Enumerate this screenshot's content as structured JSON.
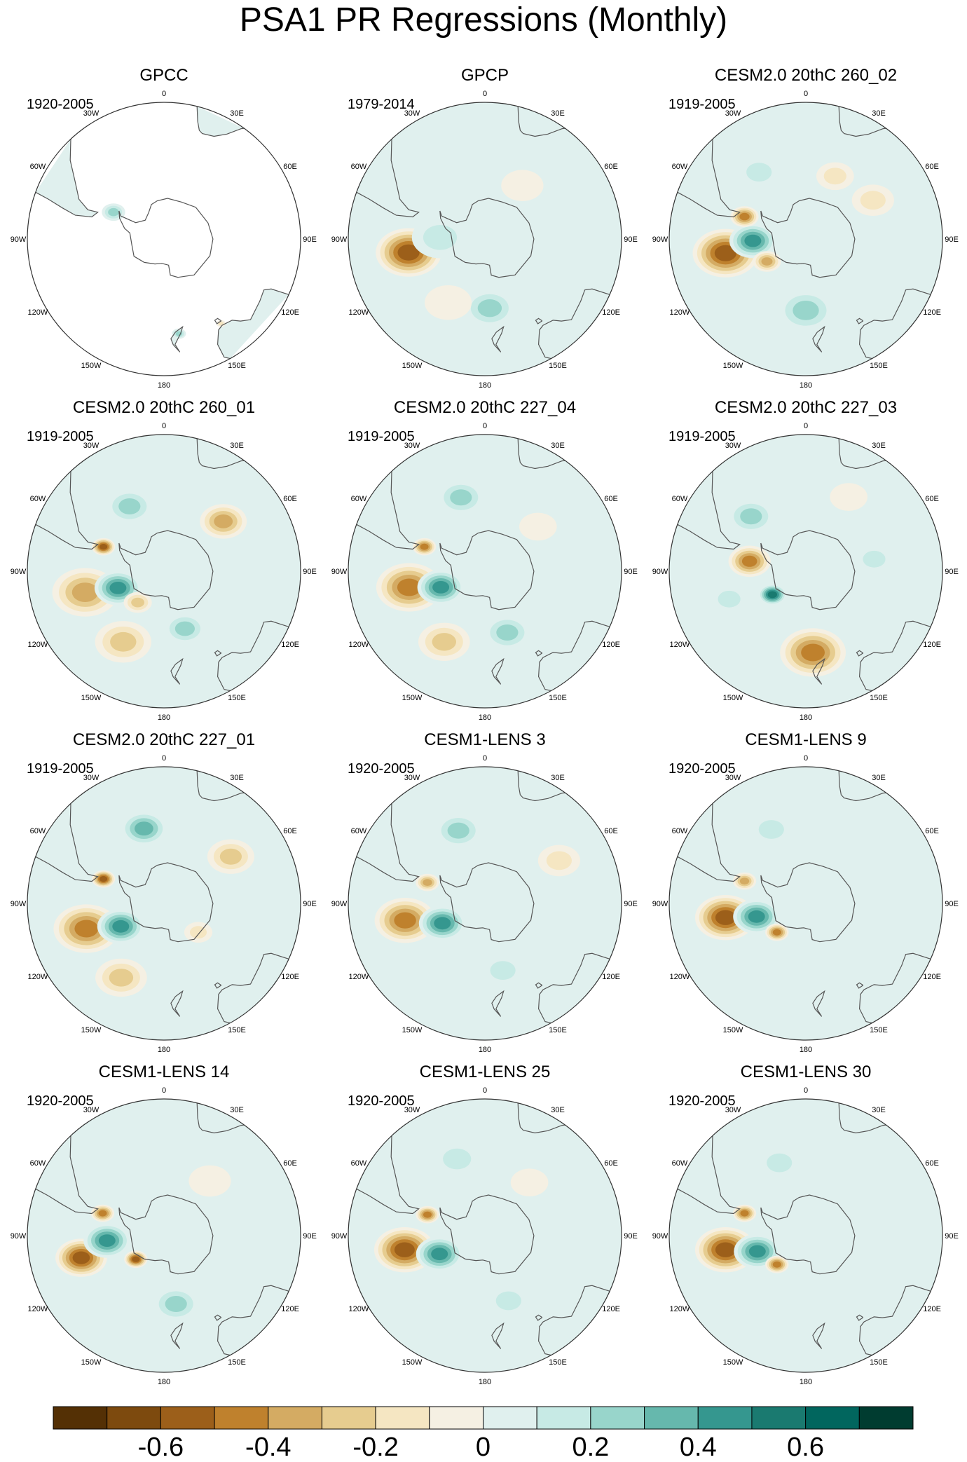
{
  "title": "PSA1 PR Regressions (Monthly)",
  "chart_data": {
    "type": "heatmap",
    "variable": "PR",
    "mode": "PSA1",
    "projection": "south-polar-stereographic",
    "lon_labels": [
      "0",
      "30E",
      "60E",
      "90E",
      "120E",
      "150E",
      "180",
      "150W",
      "120W",
      "90W",
      "60W",
      "30W"
    ],
    "panels": [
      {
        "name": "GPCC",
        "period": "1920-2005",
        "data": "land-only",
        "features": [
          {
            "lat": -62,
            "lon": -62,
            "r": 5,
            "v": 0.3
          },
          {
            "lat": -43,
            "lon": 171,
            "r": 3,
            "v": 0.3
          },
          {
            "lat": -40,
            "lon": 146,
            "r": 2,
            "v": -0.2
          }
        ]
      },
      {
        "name": "GPCP",
        "period": "1979-2014",
        "features": [
          {
            "lat": -52,
            "lon": -100,
            "r": 14,
            "v": -0.62
          },
          {
            "lat": -68,
            "lon": -88,
            "r": 12,
            "v": 0.24
          },
          {
            "lat": -56,
            "lon": 176,
            "r": 11,
            "v": 0.26
          },
          {
            "lat": -48,
            "lon": -28,
            "r": 9,
            "v": 0.14
          },
          {
            "lat": -58,
            "lon": 35,
            "r": 9,
            "v": -0.1
          },
          {
            "lat": -52,
            "lon": 110,
            "r": 10,
            "v": 0.1
          },
          {
            "lat": -54,
            "lon": -150,
            "r": 10,
            "v": -0.12
          }
        ]
      },
      {
        "name": "CESM2.0 20thC 260_02",
        "period": "1919-2005",
        "features": [
          {
            "lat": -50,
            "lon": -100,
            "r": 14,
            "v": -0.6
          },
          {
            "lat": -64,
            "lon": -92,
            "r": 10,
            "v": 0.48
          },
          {
            "lat": -68,
            "lon": -120,
            "r": 6,
            "v": -0.4
          },
          {
            "lat": -58,
            "lon": -70,
            "r": 6,
            "v": -0.5
          },
          {
            "lat": -55,
            "lon": 180,
            "r": 12,
            "v": 0.32
          },
          {
            "lat": -50,
            "lon": -35,
            "r": 9,
            "v": 0.22
          },
          {
            "lat": -52,
            "lon": 60,
            "r": 9,
            "v": -0.2
          },
          {
            "lat": -56,
            "lon": 25,
            "r": 8,
            "v": -0.18
          }
        ]
      },
      {
        "name": "CESM2.0 20thC 260_01",
        "period": "1919-2005",
        "features": [
          {
            "lat": -50,
            "lon": -105,
            "r": 14,
            "v": -0.42
          },
          {
            "lat": -66,
            "lon": -110,
            "r": 10,
            "v": 0.5
          },
          {
            "lat": -58,
            "lon": -68,
            "r": 5,
            "v": -0.62
          },
          {
            "lat": -54,
            "lon": -28,
            "r": 10,
            "v": 0.34
          },
          {
            "lat": -52,
            "lon": 50,
            "r": 10,
            "v": -0.4
          },
          {
            "lat": -50,
            "lon": -150,
            "r": 12,
            "v": -0.32
          },
          {
            "lat": -60,
            "lon": 160,
            "r": 9,
            "v": 0.28
          },
          {
            "lat": -70,
            "lon": -140,
            "r": 6,
            "v": -0.3
          }
        ]
      },
      {
        "name": "CESM2.0 20thC 227_04",
        "period": "1919-2005",
        "features": [
          {
            "lat": -52,
            "lon": -102,
            "r": 14,
            "v": -0.5
          },
          {
            "lat": -67,
            "lon": -110,
            "r": 10,
            "v": 0.5
          },
          {
            "lat": -58,
            "lon": -68,
            "r": 5,
            "v": -0.45
          },
          {
            "lat": -52,
            "lon": -18,
            "r": 10,
            "v": 0.32
          },
          {
            "lat": -50,
            "lon": -150,
            "r": 11,
            "v": -0.3
          },
          {
            "lat": -58,
            "lon": 160,
            "r": 10,
            "v": 0.25
          },
          {
            "lat": -56,
            "lon": 50,
            "r": 8,
            "v": -0.12
          }
        ]
      },
      {
        "name": "CESM2.0 20thC 227_03",
        "period": "1919-2005",
        "features": [
          {
            "lat": -62,
            "lon": -80,
            "r": 9,
            "v": -0.5
          },
          {
            "lat": -70,
            "lon": -125,
            "r": 6,
            "v": 0.55
          },
          {
            "lat": -50,
            "lon": 175,
            "r": 14,
            "v": -0.45
          },
          {
            "lat": -52,
            "lon": -45,
            "r": 10,
            "v": 0.3
          },
          {
            "lat": -50,
            "lon": -110,
            "r": 8,
            "v": 0.22
          },
          {
            "lat": -56,
            "lon": 80,
            "r": 8,
            "v": 0.18
          },
          {
            "lat": -48,
            "lon": 30,
            "r": 8,
            "v": -0.1
          }
        ]
      },
      {
        "name": "CESM2.0 20thC 227_01",
        "period": "1919-2005",
        "features": [
          {
            "lat": -50,
            "lon": -108,
            "r": 14,
            "v": -0.5
          },
          {
            "lat": -66,
            "lon": -118,
            "r": 10,
            "v": 0.5
          },
          {
            "lat": -58,
            "lon": -68,
            "r": 5,
            "v": -0.62
          },
          {
            "lat": -52,
            "lon": -15,
            "r": 10,
            "v": 0.4
          },
          {
            "lat": -50,
            "lon": 55,
            "r": 10,
            "v": -0.3
          },
          {
            "lat": -48,
            "lon": -150,
            "r": 11,
            "v": -0.3
          },
          {
            "lat": -68,
            "lon": 130,
            "r": 6,
            "v": -0.2
          }
        ]
      },
      {
        "name": "CESM1-LENS 3",
        "period": "1920-2005",
        "features": [
          {
            "lat": -50,
            "lon": -102,
            "r": 13,
            "v": -0.5
          },
          {
            "lat": -67,
            "lon": -115,
            "r": 10,
            "v": 0.45
          },
          {
            "lat": -60,
            "lon": -70,
            "r": 5,
            "v": -0.4
          },
          {
            "lat": -52,
            "lon": -20,
            "r": 10,
            "v": 0.25
          },
          {
            "lat": -48,
            "lon": 60,
            "r": 9,
            "v": -0.18
          },
          {
            "lat": -56,
            "lon": 165,
            "r": 9,
            "v": 0.18
          }
        ]
      },
      {
        "name": "CESM1-LENS 9",
        "period": "1920-2005",
        "features": [
          {
            "lat": -50,
            "lon": -100,
            "r": 13,
            "v": -0.55
          },
          {
            "lat": -65,
            "lon": -105,
            "r": 10,
            "v": 0.52
          },
          {
            "lat": -58,
            "lon": -70,
            "r": 5,
            "v": -0.4
          },
          {
            "lat": -70,
            "lon": -135,
            "r": 5,
            "v": -0.45
          },
          {
            "lat": -50,
            "lon": -25,
            "r": 9,
            "v": 0.18
          },
          {
            "lat": -56,
            "lon": 165,
            "r": 9,
            "v": 0.14
          }
        ]
      },
      {
        "name": "CESM1-LENS 14",
        "period": "1920-2005",
        "features": [
          {
            "lat": -48,
            "lon": -105,
            "r": 11,
            "v": -0.55
          },
          {
            "lat": -62,
            "lon": -95,
            "r": 10,
            "v": 0.48
          },
          {
            "lat": -72,
            "lon": -130,
            "r": 5,
            "v": -0.55
          },
          {
            "lat": -58,
            "lon": -70,
            "r": 5,
            "v": -0.5
          },
          {
            "lat": -56,
            "lon": 170,
            "r": 10,
            "v": 0.28
          },
          {
            "lat": -55,
            "lon": 40,
            "r": 9,
            "v": -0.14
          }
        ]
      },
      {
        "name": "CESM1-LENS 25",
        "period": "1920-2005",
        "features": [
          {
            "lat": -50,
            "lon": -100,
            "r": 13,
            "v": -0.55
          },
          {
            "lat": -66,
            "lon": -112,
            "r": 10,
            "v": 0.5
          },
          {
            "lat": -60,
            "lon": -70,
            "r": 5,
            "v": -0.45
          },
          {
            "lat": -50,
            "lon": -20,
            "r": 10,
            "v": 0.22
          },
          {
            "lat": -56,
            "lon": 40,
            "r": 8,
            "v": -0.14
          },
          {
            "lat": -56,
            "lon": 160,
            "r": 9,
            "v": 0.16
          }
        ]
      },
      {
        "name": "CESM1-LENS 30",
        "period": "1920-2005",
        "features": [
          {
            "lat": -50,
            "lon": -100,
            "r": 13,
            "v": -0.55
          },
          {
            "lat": -65,
            "lon": -108,
            "r": 10,
            "v": 0.5
          },
          {
            "lat": -70,
            "lon": -135,
            "r": 5,
            "v": -0.48
          },
          {
            "lat": -58,
            "lon": -70,
            "r": 5,
            "v": -0.45
          },
          {
            "lat": -52,
            "lon": -20,
            "r": 9,
            "v": 0.16
          },
          {
            "lat": -56,
            "lon": 170,
            "r": 9,
            "v": 0.14
          }
        ]
      }
    ],
    "colorbar": {
      "levels": [
        -0.7,
        -0.6,
        -0.5,
        -0.4,
        -0.3,
        -0.2,
        -0.1,
        0,
        0.1,
        0.2,
        0.3,
        0.4,
        0.5,
        0.6,
        0.7
      ],
      "tick_values": [
        -0.6,
        -0.4,
        -0.2,
        0,
        0.2,
        0.4,
        0.6
      ],
      "tick_labels": [
        "-0.6",
        "-0.4",
        "-0.2",
        "0",
        "0.2",
        "0.4",
        "0.6"
      ],
      "colors": [
        "#543005",
        "#7d4a0e",
        "#9c5f1a",
        "#bf812d",
        "#d4ab63",
        "#e6cc8f",
        "#f5e6c2",
        "#f5f0e3",
        "#e0f0ee",
        "#c7eae5",
        "#98d5cb",
        "#66b8ad",
        "#35978f",
        "#1a7a70",
        "#01665e",
        "#003c30"
      ]
    }
  }
}
